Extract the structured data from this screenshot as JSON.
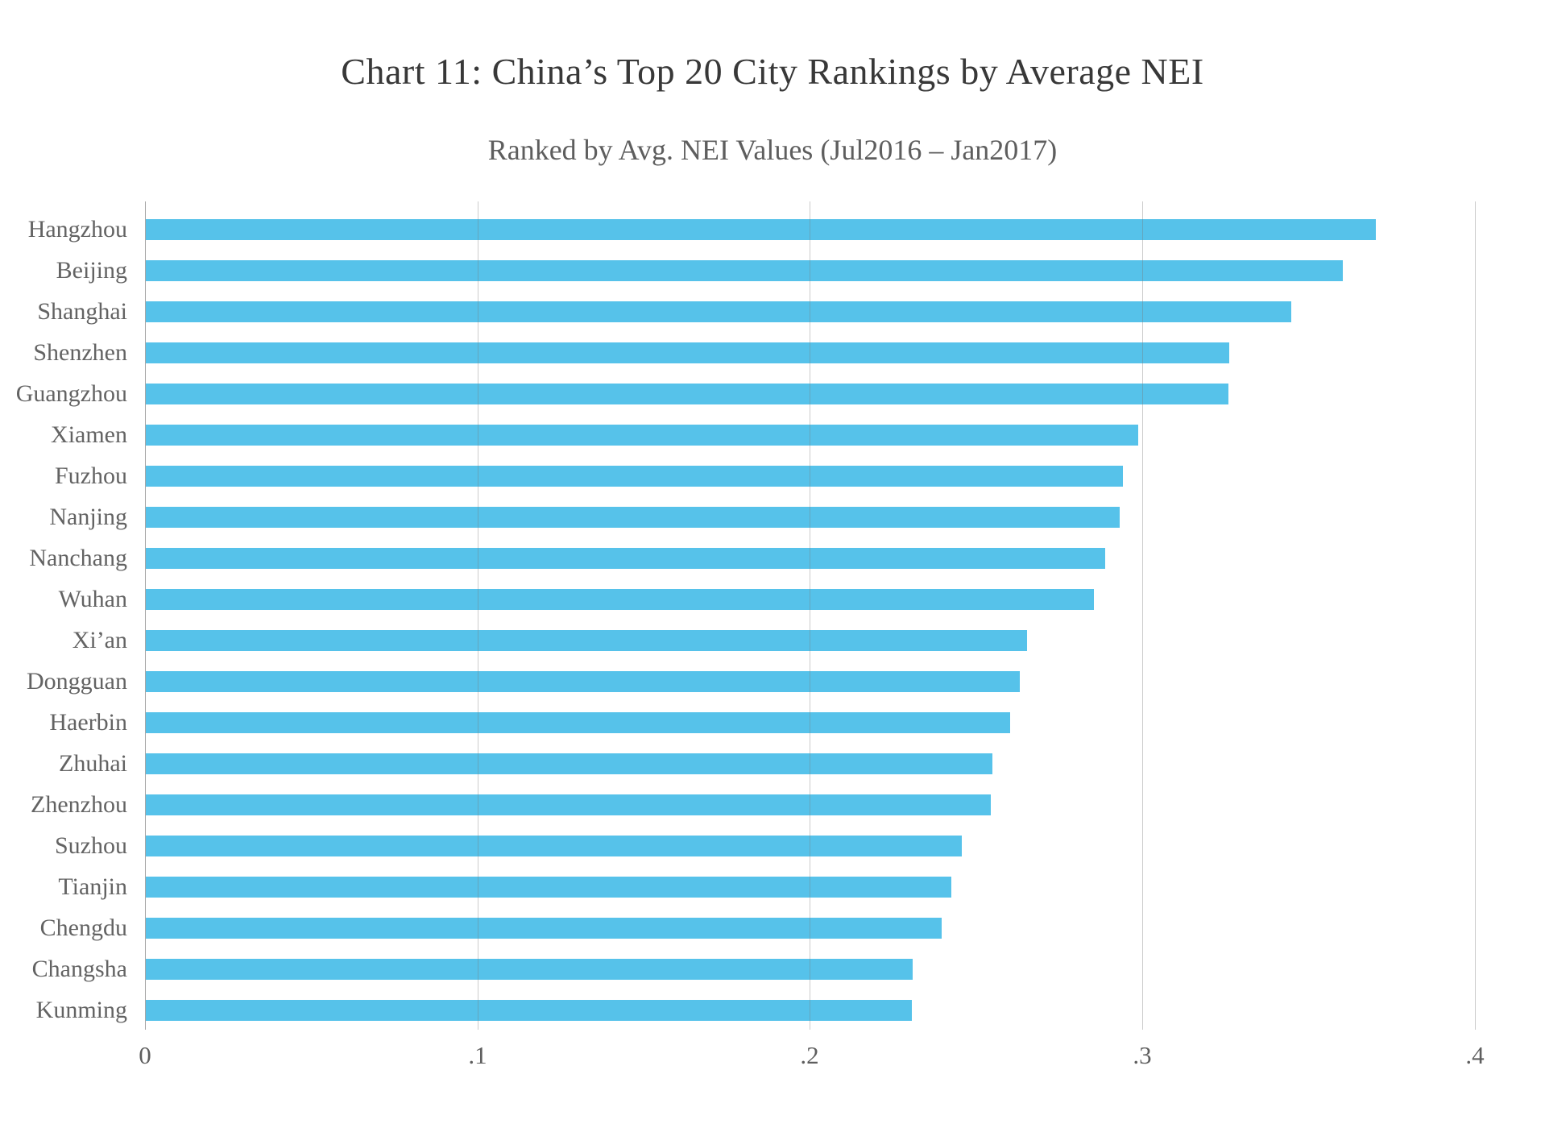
{
  "title": "Chart 11: China’s Top 20 City Rankings by Average NEI",
  "subtitle": "Ranked by Avg. NEI Values (Jul2016 – Jan2017)",
  "colors": {
    "bar": "#56c2ea",
    "gridline": "#9e9e9e",
    "axis_line": "#a6a6a6",
    "category_label": "#636363",
    "title_text": "#383838",
    "subtitle_text": "#5e5e5e",
    "background": "#ffffff"
  },
  "chart_data": {
    "type": "bar",
    "orientation": "horizontal",
    "title": "Chart 11: China’s Top 20 City Rankings by Average NEI",
    "subtitle": "Ranked by Avg. NEI Values (Jul2016 – Jan2017)",
    "categories": [
      "Hangzhou",
      "Beijing",
      "Shanghai",
      "Shenzhen",
      "Guangzhou",
      "Xiamen",
      "Fuzhou",
      "Nanjing",
      "Nanchang",
      "Wuhan",
      "Xi’an",
      "Dongguan",
      "Haerbin",
      "Zhuhai",
      "Zhenzhou",
      "Suzhou",
      "Tianjin",
      "Chengdu",
      "Changsha",
      "Kunming"
    ],
    "values": [
      0.37,
      0.36,
      0.3445,
      0.326,
      0.3256,
      0.2985,
      0.294,
      0.293,
      0.2885,
      0.2852,
      0.265,
      0.263,
      0.26,
      0.2546,
      0.2542,
      0.2455,
      0.2422,
      0.2395,
      0.2306,
      0.2304
    ],
    "xlabel": "",
    "ylabel": "",
    "xlim": [
      0,
      0.4
    ],
    "xticks": [
      "0",
      ".1",
      ".2",
      ".3",
      ".4"
    ],
    "xtick_values": [
      0,
      0.1,
      0.2,
      0.3,
      0.4
    ],
    "grid": "vertical-gridlines-on",
    "legend": "none",
    "sort": "descending"
  }
}
